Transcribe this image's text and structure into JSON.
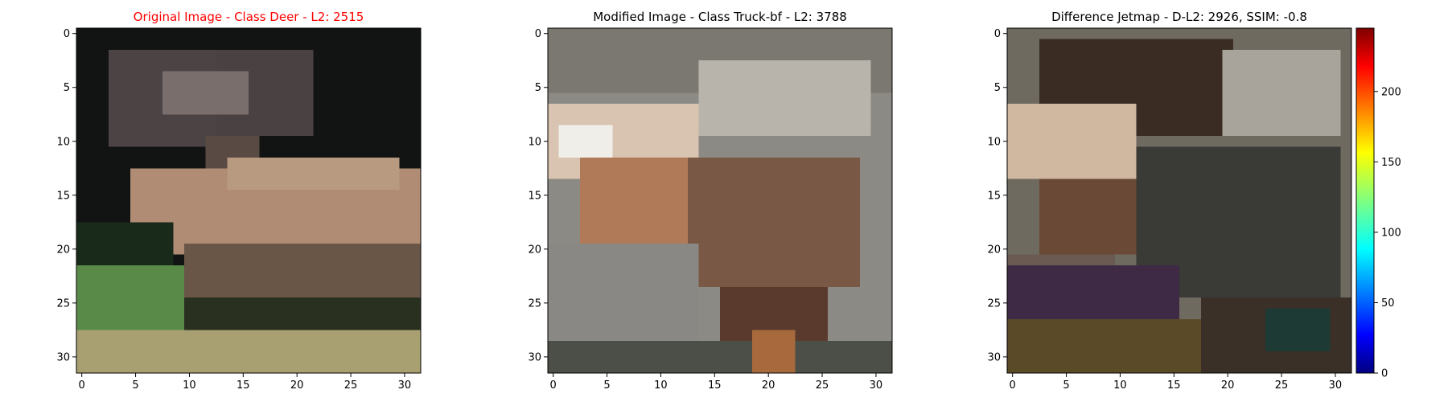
{
  "chart_data": [
    {
      "type": "image",
      "title": "Original Image - Class Deer - L2: 2515",
      "title_color": "#ff0000",
      "xlim": [
        -0.5,
        31.5
      ],
      "ylim": [
        31.5,
        -0.5
      ],
      "xticks": [
        0,
        5,
        10,
        15,
        20,
        25,
        30
      ],
      "yticks": [
        0,
        5,
        10,
        15,
        20,
        25,
        30
      ]
    },
    {
      "type": "image",
      "title": "Modified Image - Class Truck-bf - L2: 3788",
      "title_color": "#000000",
      "xlim": [
        -0.5,
        31.5
      ],
      "ylim": [
        31.5,
        -0.5
      ],
      "xticks": [
        0,
        5,
        10,
        15,
        20,
        25,
        30
      ],
      "yticks": [
        0,
        5,
        10,
        15,
        20,
        25,
        30
      ]
    },
    {
      "type": "image",
      "title": "Difference Jetmap - D-L2: 2926, SSIM: -0.8",
      "title_color": "#000000",
      "xlim": [
        -0.5,
        31.5
      ],
      "ylim": [
        31.5,
        -0.5
      ],
      "xticks": [
        0,
        5,
        10,
        15,
        20,
        25,
        30
      ],
      "yticks": [
        0,
        5,
        10,
        15,
        20,
        25,
        30
      ]
    },
    {
      "type": "colorbar",
      "colormap": "jet",
      "ylim": [
        0,
        245
      ],
      "yticks": [
        0,
        50,
        100,
        150,
        200
      ]
    }
  ]
}
